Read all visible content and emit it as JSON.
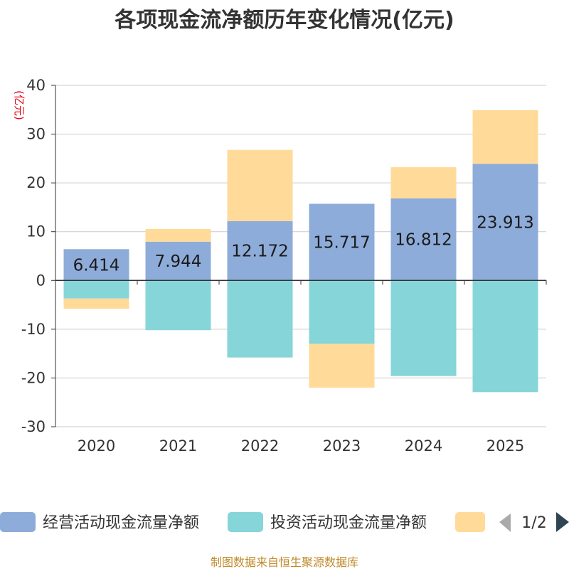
{
  "colors": {
    "operating": "#8eacd9",
    "investing": "#86d5d8",
    "financing": "#ffda99",
    "grid": "#cccccc",
    "axis": "#333333",
    "unit": "#e60012",
    "footer": "#c08a2a",
    "pager_active": "#2f4554",
    "pager_inactive": "#aaaaaa"
  },
  "legend": {
    "page": "1/2",
    "prev_icon": "triangle-left-icon",
    "next_icon": "triangle-right-icon"
  },
  "footer": {
    "text": "制图数据来自恒生聚源数据库"
  },
  "chart_data": {
    "type": "bar",
    "stacked": true,
    "title": "各项现金流净额历年变化情况(亿元)",
    "ylabel": "(亿元)",
    "xlabel": "",
    "categories": [
      "2020",
      "2021",
      "2022",
      "2023",
      "2024",
      "2025"
    ],
    "ylim": [
      -30,
      40
    ],
    "yticks": [
      40,
      30,
      20,
      10,
      0,
      -10,
      -20,
      -30
    ],
    "grid": true,
    "legend_position": "bottom",
    "series": [
      {
        "name": "经营活动现金流量净额",
        "color": "#8eacd9",
        "values": [
          6.414,
          7.944,
          12.172,
          15.717,
          16.812,
          23.913
        ],
        "data_labels": [
          "6.414",
          "7.944",
          "12.172",
          "15.717",
          "16.812",
          "23.913"
        ]
      },
      {
        "name": "投资活动现金流量净额",
        "color": "#86d5d8",
        "values": [
          -3.7,
          -10.2,
          -15.8,
          -13.0,
          -19.6,
          -22.9
        ]
      },
      {
        "name": "",
        "color": "#ffda99",
        "values": [
          -2.1,
          2.6,
          14.6,
          -9.0,
          6.4,
          11.0
        ]
      }
    ]
  }
}
